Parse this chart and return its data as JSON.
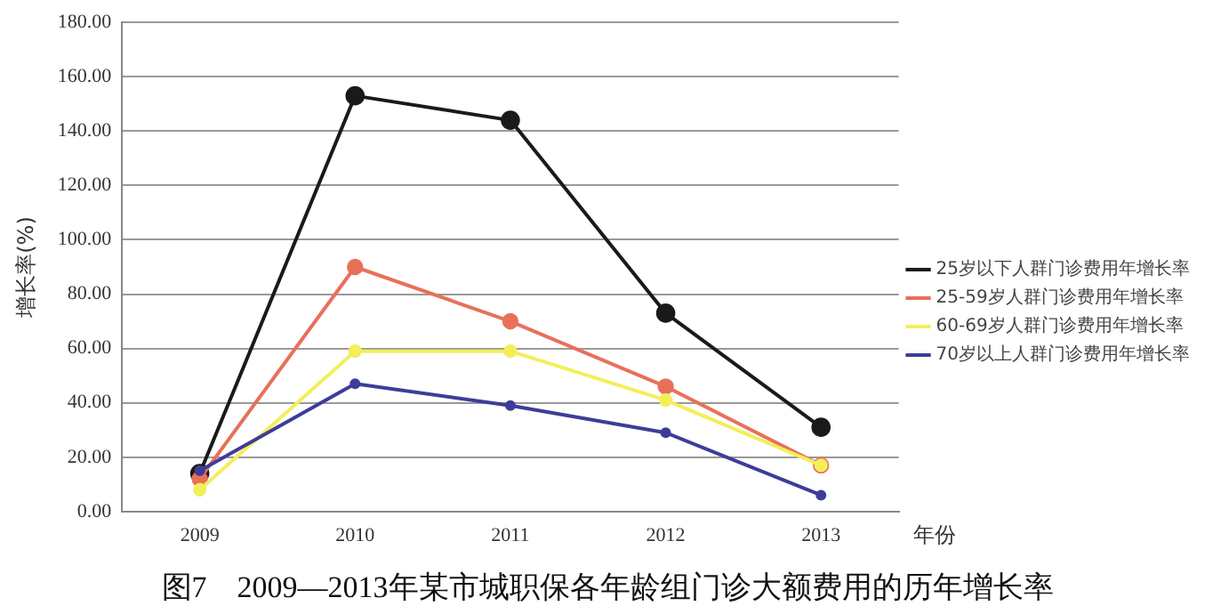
{
  "chart_data": {
    "type": "line",
    "title": "图7　2009—2013年某市城职保各年龄组门诊大额费用的历年增长率",
    "xlabel": "年份",
    "ylabel": "增长率(%)",
    "categories": [
      "2009",
      "2010",
      "2011",
      "2012",
      "2013"
    ],
    "series": [
      {
        "name": "25岁以下人群门诊费用年增长率",
        "color": "#1a1a1a",
        "values": [
          14,
          153,
          144,
          73,
          31
        ]
      },
      {
        "name": "25-59岁人群门诊费用年增长率",
        "color": "#e8705a",
        "values": [
          12,
          90,
          70,
          46,
          17
        ]
      },
      {
        "name": "60-69岁人群门诊费用年增长率",
        "color": "#f2ef5a",
        "values": [
          8,
          59,
          59,
          41,
          17
        ]
      },
      {
        "name": "70岁以上人群门诊费用年增长率",
        "color": "#3d3d99",
        "values": [
          15,
          47,
          39,
          29,
          6
        ]
      }
    ],
    "ylim": [
      0,
      180
    ],
    "yticks": [
      {
        "value": 0,
        "label": "0.00"
      },
      {
        "value": 20,
        "label": "20.00"
      },
      {
        "value": 40,
        "label": "40.00"
      },
      {
        "value": 60,
        "label": "60.00"
      },
      {
        "value": 80,
        "label": "80.00"
      },
      {
        "value": 100,
        "label": "100.00"
      },
      {
        "value": 120,
        "label": "120.00"
      },
      {
        "value": 140,
        "label": "140.00"
      },
      {
        "value": 160,
        "label": "160.00"
      },
      {
        "value": 180,
        "label": "180.00"
      }
    ],
    "grid": "y",
    "legend": "right",
    "marker": "circle",
    "line_style": "solid"
  }
}
